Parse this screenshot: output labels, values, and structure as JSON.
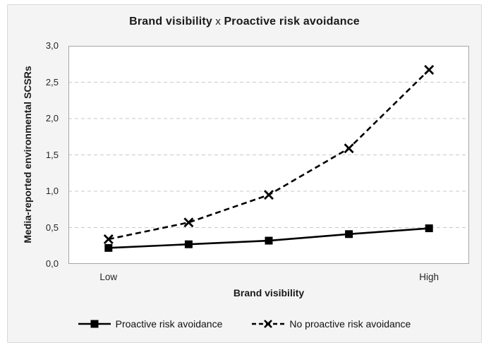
{
  "figure": {
    "title_parts": {
      "left": "Brand visibility",
      "sep": " x ",
      "right": "Proactive risk avoidance"
    }
  },
  "chart_data": {
    "type": "line",
    "title": "Brand visibility x Proactive risk avoidance",
    "xlabel": "Brand visibility",
    "ylabel": "Media-reported environmental SCSRs",
    "ylim": [
      0,
      3
    ],
    "y_ticks": [
      0.0,
      0.5,
      1.0,
      1.5,
      2.0,
      2.5,
      3.0
    ],
    "y_tick_labels": [
      "0,0",
      "0,5",
      "1,0",
      "1,5",
      "2,0",
      "2,5",
      "3,0"
    ],
    "x_ticks": [
      {
        "label": "Low",
        "index": 0
      },
      {
        "label": "High",
        "index": 4
      }
    ],
    "n_points": 5,
    "grid": "horizontal-dashed",
    "legend_position": "bottom",
    "series": [
      {
        "name": "Proactive risk avoidance",
        "line": "solid",
        "marker": "square",
        "values": [
          0.22,
          0.27,
          0.32,
          0.41,
          0.49
        ]
      },
      {
        "name": "No proactive risk avoidance",
        "line": "dashed",
        "marker": "x",
        "values": [
          0.34,
          0.57,
          0.95,
          1.59,
          2.67
        ]
      }
    ],
    "colors": {
      "series": "#000000",
      "grid": "#c9c9c9",
      "plot_border": "#a6a6a6",
      "plot_bg": "#ffffff",
      "figure_bg": "#f4f4f5",
      "figure_border": "#d9d9d9"
    }
  }
}
